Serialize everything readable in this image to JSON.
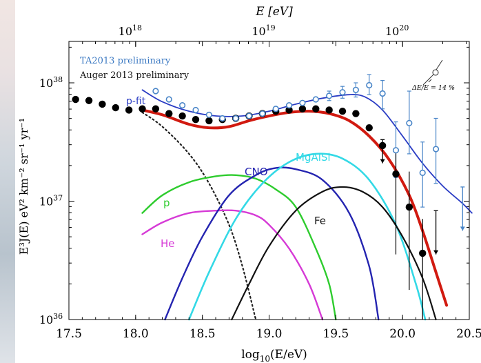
{
  "chart_data": {
    "type": "scatter",
    "top_axis_label": "E [eV]",
    "top_ticks": [
      {
        "base": "10",
        "exp": "18",
        "log": 18
      },
      {
        "base": "10",
        "exp": "19",
        "log": 19
      },
      {
        "base": "10",
        "exp": "20",
        "log": 20
      }
    ],
    "xlabel": "log10(E/eV)",
    "xlabel_parts": {
      "main": "log",
      "sub": "10",
      "rest": "(E/eV)"
    },
    "ylabel": "E³J(E)   eV² km⁻² sr⁻¹ yr⁻¹",
    "xlim": [
      17.5,
      20.5
    ],
    "ylim_log10": [
      36,
      38.35
    ],
    "x_ticks": [
      "17.5",
      "18.0",
      "18.5",
      "19.0",
      "19.5",
      "20.0",
      "20.5"
    ],
    "y_ticks": [
      {
        "base": "10",
        "exp": "36",
        "value": 36
      },
      {
        "base": "10",
        "exp": "37",
        "value": 37
      },
      {
        "base": "10",
        "exp": "38",
        "value": 38
      }
    ],
    "legend": [
      {
        "label": "TA2013 preliminary",
        "color": "#3a78c2"
      },
      {
        "label": "Auger 2013 preliminary",
        "color": "#111111"
      }
    ],
    "annotations": {
      "energy_scale": "ΔE/E = 14 %",
      "p_fit": "p-fit"
    },
    "colors": {
      "total": "#d11a10",
      "pfit": "#2a3cc4",
      "ta": "#4a86c8",
      "auger": "#000000",
      "p": "#2ecc2e",
      "He": "#d63ad6",
      "CNO": "#2424b0",
      "MgAlSi": "#33d9e6",
      "Fe": "#111111",
      "galactic": "#222222"
    },
    "series": [
      {
        "name": "p",
        "curve": [
          [
            18.05,
            36.9
          ],
          [
            18.2,
            37.05
          ],
          [
            18.4,
            37.16
          ],
          [
            18.6,
            37.21
          ],
          [
            18.75,
            37.22
          ],
          [
            18.9,
            37.19
          ],
          [
            19.05,
            37.1
          ],
          [
            19.2,
            36.95
          ],
          [
            19.35,
            36.6
          ],
          [
            19.45,
            36.3
          ],
          [
            19.5,
            36.0
          ]
        ]
      },
      {
        "name": "He",
        "curve": [
          [
            18.05,
            36.72
          ],
          [
            18.2,
            36.82
          ],
          [
            18.4,
            36.9
          ],
          [
            18.6,
            36.92
          ],
          [
            18.75,
            36.92
          ],
          [
            18.9,
            36.88
          ],
          [
            19.0,
            36.8
          ],
          [
            19.15,
            36.6
          ],
          [
            19.3,
            36.3
          ],
          [
            19.4,
            36.0
          ]
        ]
      },
      {
        "name": "CNO",
        "curve": [
          [
            18.22,
            36.0
          ],
          [
            18.35,
            36.35
          ],
          [
            18.5,
            36.7
          ],
          [
            18.7,
            37.05
          ],
          [
            18.9,
            37.22
          ],
          [
            19.05,
            37.28
          ],
          [
            19.2,
            37.27
          ],
          [
            19.4,
            37.18
          ],
          [
            19.6,
            36.9
          ],
          [
            19.75,
            36.45
          ],
          [
            19.82,
            36.0
          ]
        ]
      },
      {
        "name": "MgAlSi",
        "curve": [
          [
            18.4,
            36.0
          ],
          [
            18.55,
            36.4
          ],
          [
            18.75,
            36.85
          ],
          [
            18.95,
            37.15
          ],
          [
            19.15,
            37.33
          ],
          [
            19.35,
            37.4
          ],
          [
            19.55,
            37.36
          ],
          [
            19.75,
            37.18
          ],
          [
            19.95,
            36.8
          ],
          [
            20.1,
            36.3
          ],
          [
            20.17,
            36.0
          ]
        ]
      },
      {
        "name": "Fe",
        "curve": [
          [
            18.72,
            36.0
          ],
          [
            18.85,
            36.3
          ],
          [
            19.0,
            36.62
          ],
          [
            19.2,
            36.92
          ],
          [
            19.4,
            37.08
          ],
          [
            19.55,
            37.12
          ],
          [
            19.7,
            37.08
          ],
          [
            19.85,
            36.95
          ],
          [
            20.0,
            36.7
          ],
          [
            20.15,
            36.35
          ],
          [
            20.25,
            36.0
          ]
        ]
      },
      {
        "name": "galactic",
        "curve": [
          [
            18.05,
            37.75
          ],
          [
            18.2,
            37.63
          ],
          [
            18.4,
            37.4
          ],
          [
            18.55,
            37.15
          ],
          [
            18.7,
            36.8
          ],
          [
            18.8,
            36.45
          ],
          [
            18.9,
            36.0
          ]
        ]
      },
      {
        "name": "total",
        "curve": [
          [
            18.05,
            37.77
          ],
          [
            18.2,
            37.73
          ],
          [
            18.4,
            37.65
          ],
          [
            18.55,
            37.62
          ],
          [
            18.7,
            37.63
          ],
          [
            18.85,
            37.68
          ],
          [
            19.0,
            37.72
          ],
          [
            19.15,
            37.75
          ],
          [
            19.3,
            37.76
          ],
          [
            19.45,
            37.74
          ],
          [
            19.6,
            37.68
          ],
          [
            19.75,
            37.55
          ],
          [
            19.9,
            37.35
          ],
          [
            20.05,
            37.05
          ],
          [
            20.15,
            36.75
          ],
          [
            20.25,
            36.4
          ],
          [
            20.33,
            36.12
          ]
        ]
      },
      {
        "name": "p-fit",
        "curve": [
          [
            18.05,
            37.94
          ],
          [
            18.2,
            37.84
          ],
          [
            18.4,
            37.76
          ],
          [
            18.6,
            37.72
          ],
          [
            18.8,
            37.72
          ],
          [
            19.0,
            37.76
          ],
          [
            19.2,
            37.82
          ],
          [
            19.4,
            37.87
          ],
          [
            19.6,
            37.9
          ],
          [
            19.72,
            37.88
          ],
          [
            19.85,
            37.77
          ],
          [
            20.0,
            37.55
          ],
          [
            20.15,
            37.32
          ],
          [
            20.3,
            37.13
          ],
          [
            20.45,
            36.98
          ],
          [
            20.52,
            36.9
          ]
        ]
      },
      {
        "name": "Auger 2013 preliminary",
        "points": [
          [
            17.55,
            37.86
          ],
          [
            17.65,
            37.85
          ],
          [
            17.75,
            37.82
          ],
          [
            17.85,
            37.79
          ],
          [
            17.95,
            37.77
          ],
          [
            18.05,
            37.78
          ],
          [
            18.15,
            37.78
          ],
          [
            18.25,
            37.74
          ],
          [
            18.35,
            37.72
          ],
          [
            18.45,
            37.69
          ],
          [
            18.55,
            37.68
          ],
          [
            18.65,
            37.69
          ],
          [
            18.75,
            37.7
          ],
          [
            18.85,
            37.72
          ],
          [
            18.95,
            37.74
          ],
          [
            19.05,
            37.76
          ],
          [
            19.15,
            37.77
          ],
          [
            19.25,
            37.78
          ],
          [
            19.35,
            37.78
          ],
          [
            19.45,
            37.77
          ],
          [
            19.55,
            37.76
          ],
          [
            19.65,
            37.74
          ],
          [
            19.75,
            37.62
          ],
          [
            19.85,
            37.47
          ],
          [
            19.95,
            37.23
          ],
          [
            20.05,
            36.95
          ],
          [
            20.15,
            36.56
          ]
        ]
      },
      {
        "name": "TA2013 preliminary",
        "points": [
          [
            18.15,
            37.93
          ],
          [
            18.25,
            37.86
          ],
          [
            18.35,
            37.81
          ],
          [
            18.45,
            37.77
          ],
          [
            18.55,
            37.73
          ],
          [
            18.65,
            37.7
          ],
          [
            18.75,
            37.7
          ],
          [
            18.85,
            37.72
          ],
          [
            18.95,
            37.74
          ],
          [
            19.05,
            37.78
          ],
          [
            19.15,
            37.81
          ],
          [
            19.25,
            37.83
          ],
          [
            19.35,
            37.86
          ],
          [
            19.45,
            37.89
          ],
          [
            19.55,
            37.92
          ],
          [
            19.65,
            37.94
          ],
          [
            19.75,
            37.98
          ],
          [
            19.85,
            37.91
          ],
          [
            19.95,
            37.43
          ],
          [
            20.05,
            37.66
          ],
          [
            20.15,
            37.24
          ],
          [
            20.25,
            37.44
          ]
        ]
      }
    ],
    "errors": {
      "ta": [
        [
          19.45,
          37.85,
          37.93
        ],
        [
          19.55,
          37.87,
          37.97
        ],
        [
          19.65,
          37.88,
          38.0
        ],
        [
          19.75,
          37.9,
          38.07
        ],
        [
          19.85,
          37.78,
          38.02
        ],
        [
          19.95,
          37.2,
          37.67
        ],
        [
          20.05,
          37.4,
          37.93
        ],
        [
          20.15,
          36.95,
          37.5
        ],
        [
          20.25,
          37.15,
          37.7
        ]
      ],
      "auger": [
        [
          19.95,
          36.55,
          37.45
        ],
        [
          20.05,
          36.25,
          37.25
        ],
        [
          20.15,
          36.0,
          36.85
        ]
      ]
    },
    "upper_limits": {
      "auger": [
        [
          19.85,
          37.52,
          37.32
        ],
        [
          20.25,
          36.92,
          36.55
        ]
      ],
      "ta": [
        [
          20.45,
          37.12,
          36.75
        ]
      ]
    }
  }
}
